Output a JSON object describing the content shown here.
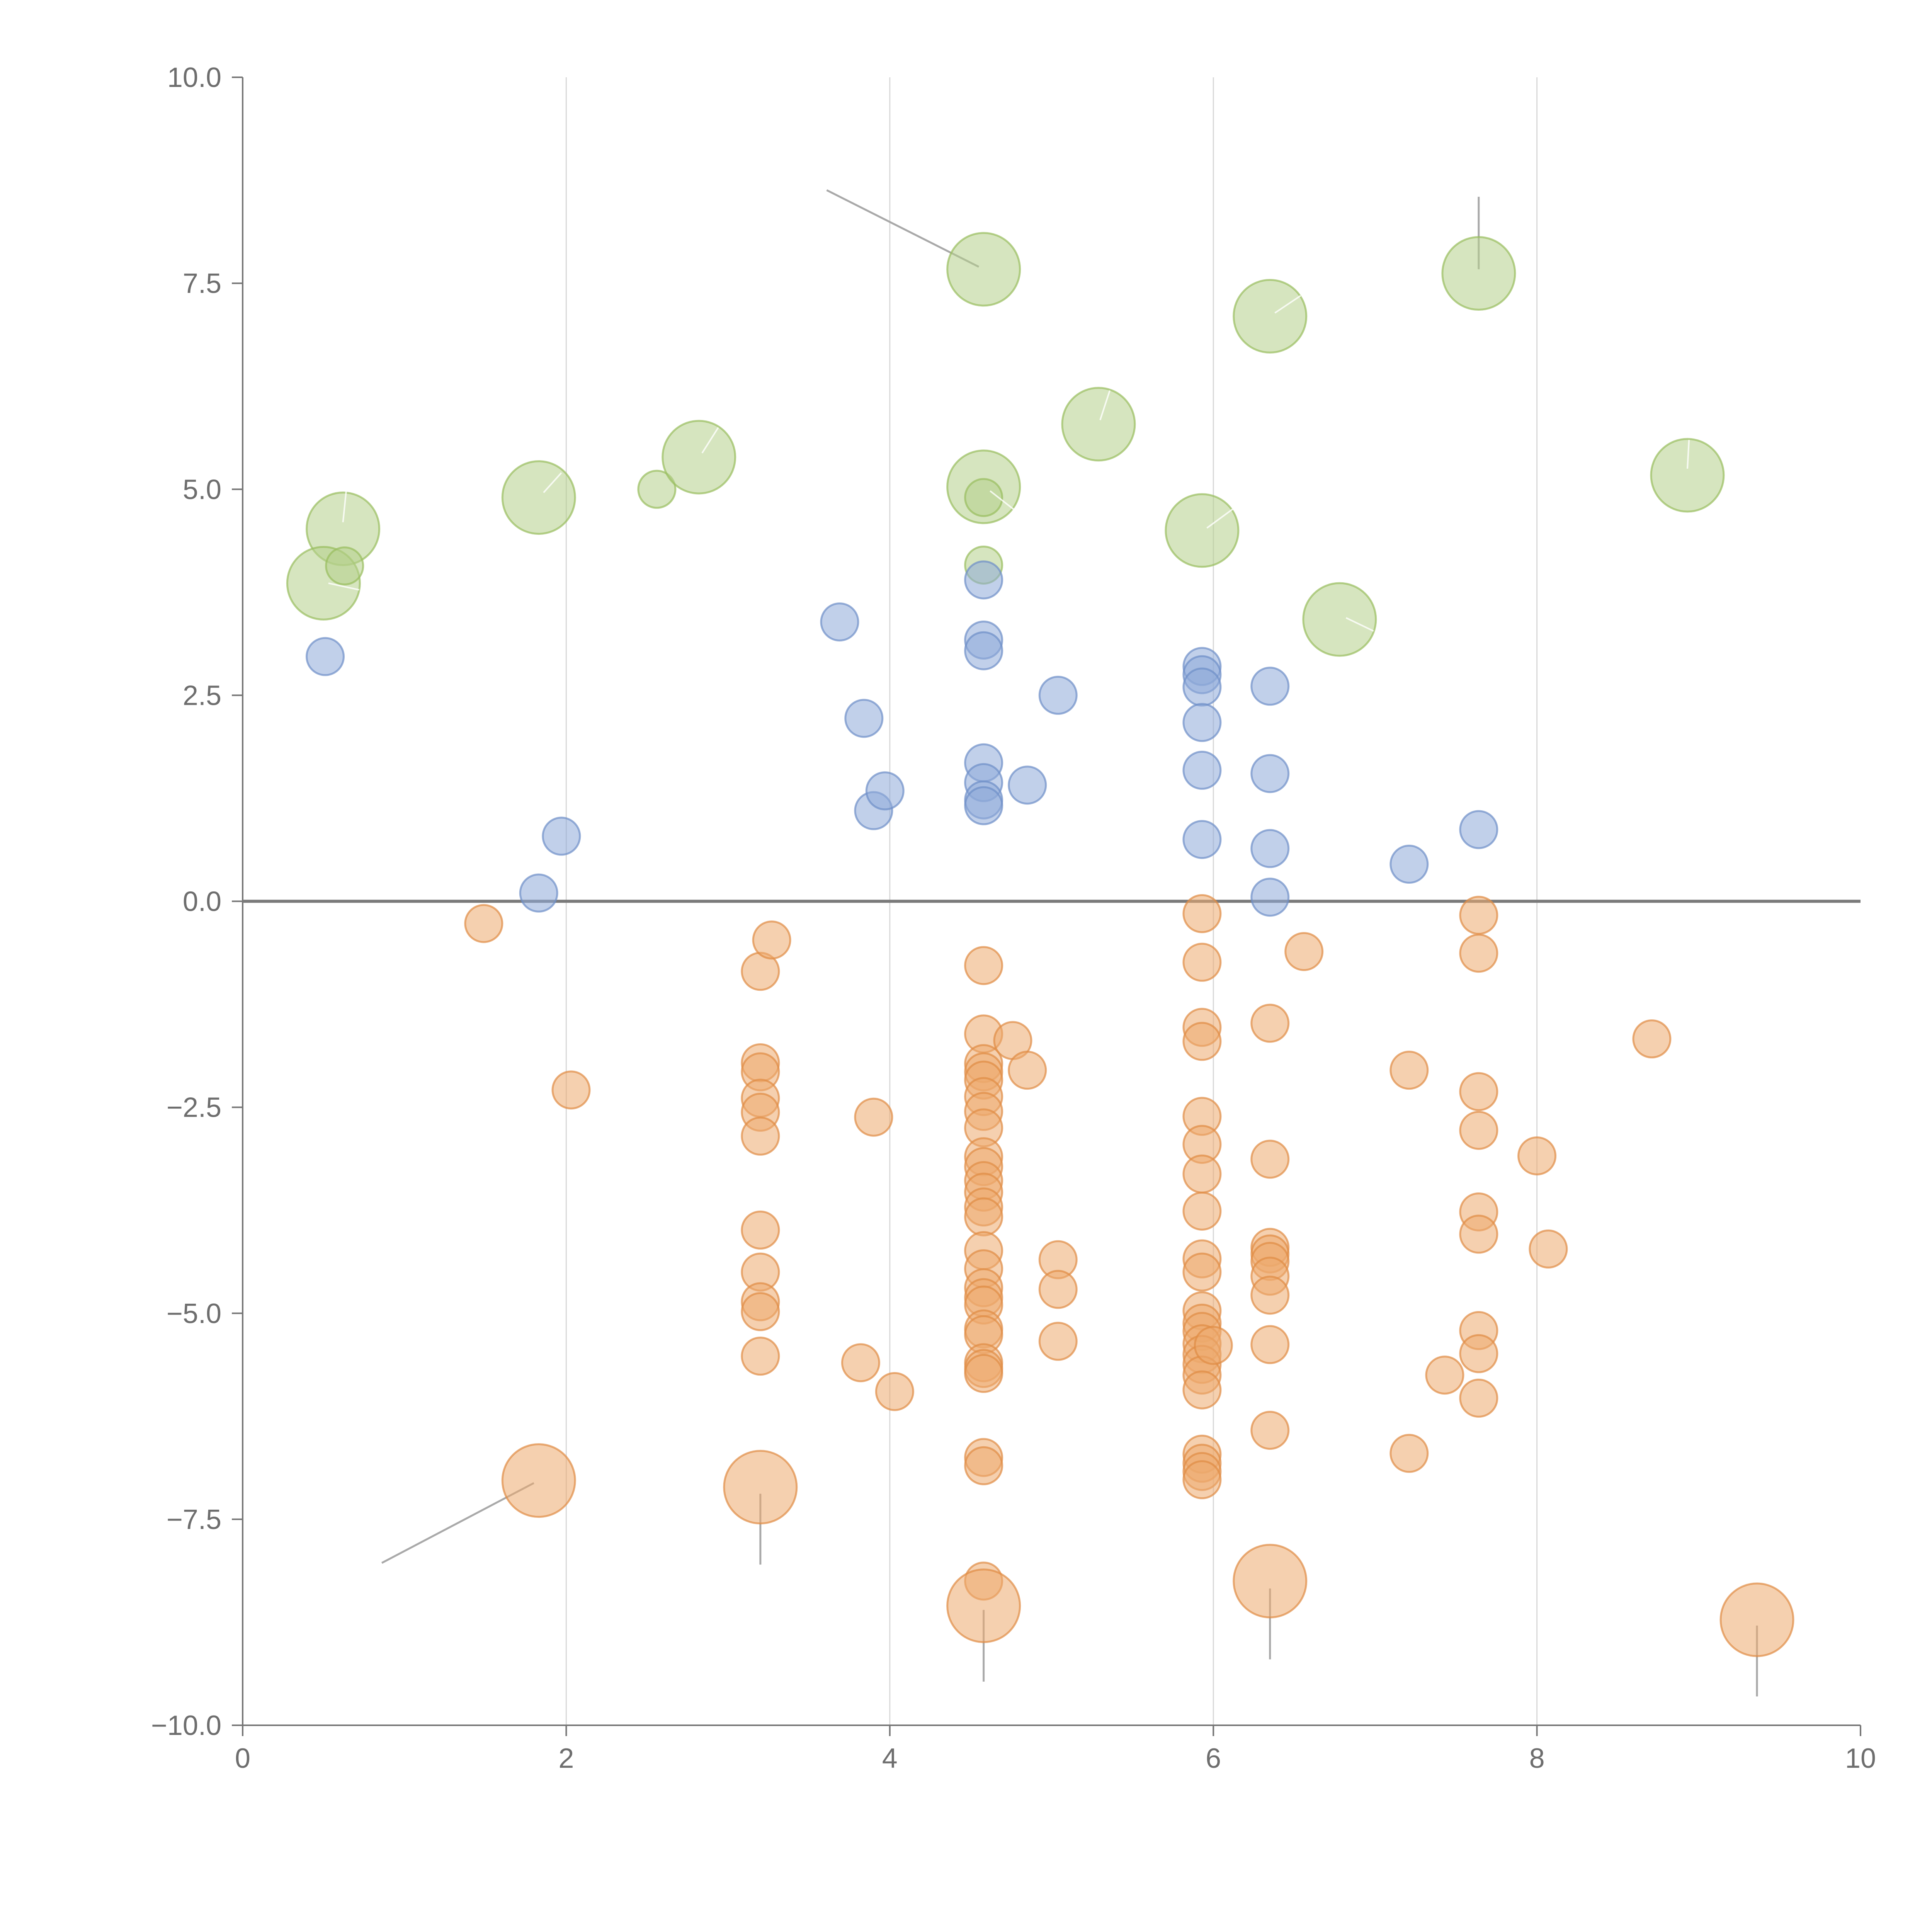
{
  "chart_data": {
    "type": "scatter",
    "title": "",
    "xlabel": "",
    "ylabel": "",
    "xlim": [
      0,
      10
    ],
    "ylim": [
      -10,
      10
    ],
    "x_ticks": [
      0,
      2,
      4,
      6,
      8,
      10
    ],
    "x_tick_labels": [
      "0",
      "2",
      "4",
      "6",
      "8",
      "10"
    ],
    "y_ticks": [
      -10,
      -7.5,
      -5,
      -2.5,
      0,
      2.5,
      5,
      7.5,
      10
    ],
    "y_tick_labels": [
      "−10.0",
      "−7.5",
      "−5.0",
      "−2.5",
      "0.0",
      "2.5",
      "5.0",
      "7.5",
      "10.0"
    ],
    "vertical_gridlines_at": [
      2,
      4,
      6,
      8
    ],
    "reference_line_y": 0,
    "colors": {
      "green_fill": "#b5d08a",
      "green_stroke": "#98bd5e",
      "blue_fill": "#8eaad8",
      "blue_stroke": "#6d8fc8",
      "orange_fill": "#eda96e",
      "orange_stroke": "#e08b45"
    },
    "size_scale": {
      "small": 1,
      "large": 2
    },
    "series": [
      {
        "name": "green",
        "points": [
          {
            "x": 0.62,
            "y": 4.52,
            "size": "large"
          },
          {
            "x": 0.5,
            "y": 3.86,
            "size": "large"
          },
          {
            "x": 0.63,
            "y": 4.07,
            "size": "small"
          },
          {
            "x": 1.83,
            "y": 4.9,
            "size": "large"
          },
          {
            "x": 2.56,
            "y": 5.0,
            "size": "small"
          },
          {
            "x": 2.82,
            "y": 5.39,
            "size": "large"
          },
          {
            "x": 4.58,
            "y": 7.67,
            "size": "large"
          },
          {
            "x": 4.58,
            "y": 5.03,
            "size": "large"
          },
          {
            "x": 4.58,
            "y": 4.9,
            "size": "small"
          },
          {
            "x": 4.58,
            "y": 4.08,
            "size": "small"
          },
          {
            "x": 5.29,
            "y": 5.79,
            "size": "large"
          },
          {
            "x": 5.93,
            "y": 4.5,
            "size": "large"
          },
          {
            "x": 6.35,
            "y": 7.1,
            "size": "large"
          },
          {
            "x": 6.78,
            "y": 3.42,
            "size": "large"
          },
          {
            "x": 7.64,
            "y": 7.62,
            "size": "large"
          },
          {
            "x": 8.93,
            "y": 5.17,
            "size": "large"
          }
        ]
      },
      {
        "name": "blue",
        "points": [
          {
            "x": 0.51,
            "y": 2.97,
            "size": "small"
          },
          {
            "x": 1.83,
            "y": 0.1,
            "size": "small"
          },
          {
            "x": 1.97,
            "y": 0.79,
            "size": "small"
          },
          {
            "x": 3.69,
            "y": 3.39,
            "size": "small"
          },
          {
            "x": 3.84,
            "y": 2.22,
            "size": "small"
          },
          {
            "x": 3.9,
            "y": 1.1,
            "size": "small"
          },
          {
            "x": 3.97,
            "y": 1.34,
            "size": "small"
          },
          {
            "x": 4.58,
            "y": 3.9,
            "size": "small"
          },
          {
            "x": 4.58,
            "y": 3.17,
            "size": "small"
          },
          {
            "x": 4.58,
            "y": 3.04,
            "size": "small"
          },
          {
            "x": 4.58,
            "y": 1.68,
            "size": "small"
          },
          {
            "x": 4.58,
            "y": 1.44,
            "size": "small"
          },
          {
            "x": 4.58,
            "y": 1.23,
            "size": "small"
          },
          {
            "x": 4.58,
            "y": 1.16,
            "size": "small"
          },
          {
            "x": 4.85,
            "y": 1.41,
            "size": "small"
          },
          {
            "x": 5.04,
            "y": 2.5,
            "size": "small"
          },
          {
            "x": 5.93,
            "y": 2.85,
            "size": "small"
          },
          {
            "x": 5.93,
            "y": 2.75,
            "size": "small"
          },
          {
            "x": 5.93,
            "y": 2.6,
            "size": "small"
          },
          {
            "x": 5.93,
            "y": 2.17,
            "size": "small"
          },
          {
            "x": 5.93,
            "y": 1.59,
            "size": "small"
          },
          {
            "x": 5.93,
            "y": 0.75,
            "size": "small"
          },
          {
            "x": 6.35,
            "y": 2.61,
            "size": "small"
          },
          {
            "x": 6.35,
            "y": 1.55,
            "size": "small"
          },
          {
            "x": 6.35,
            "y": 0.64,
            "size": "small"
          },
          {
            "x": 6.35,
            "y": 0.05,
            "size": "small"
          },
          {
            "x": 7.21,
            "y": 0.45,
            "size": "small"
          },
          {
            "x": 7.64,
            "y": 0.87,
            "size": "small"
          }
        ]
      },
      {
        "name": "orange",
        "points": [
          {
            "x": 1.49,
            "y": -0.27,
            "size": "small"
          },
          {
            "x": 2.03,
            "y": -2.29,
            "size": "small"
          },
          {
            "x": 1.83,
            "y": -7.03,
            "size": "large"
          },
          {
            "x": 3.2,
            "y": -0.85,
            "size": "small"
          },
          {
            "x": 3.27,
            "y": -0.47,
            "size": "small"
          },
          {
            "x": 3.2,
            "y": -1.96,
            "size": "small"
          },
          {
            "x": 3.2,
            "y": -2.07,
            "size": "small"
          },
          {
            "x": 3.2,
            "y": -2.39,
            "size": "small"
          },
          {
            "x": 3.2,
            "y": -2.56,
            "size": "small"
          },
          {
            "x": 3.2,
            "y": -2.85,
            "size": "small"
          },
          {
            "x": 3.2,
            "y": -3.99,
            "size": "small"
          },
          {
            "x": 3.2,
            "y": -4.5,
            "size": "small"
          },
          {
            "x": 3.2,
            "y": -4.86,
            "size": "small"
          },
          {
            "x": 3.2,
            "y": -4.98,
            "size": "small"
          },
          {
            "x": 3.2,
            "y": -5.52,
            "size": "small"
          },
          {
            "x": 3.2,
            "y": -7.11,
            "size": "large"
          },
          {
            "x": 3.82,
            "y": -5.6,
            "size": "small"
          },
          {
            "x": 3.9,
            "y": -2.62,
            "size": "small"
          },
          {
            "x": 4.03,
            "y": -5.95,
            "size": "small"
          },
          {
            "x": 4.58,
            "y": -0.78,
            "size": "small"
          },
          {
            "x": 4.58,
            "y": -1.61,
            "size": "small"
          },
          {
            "x": 4.58,
            "y": -1.97,
            "size": "small"
          },
          {
            "x": 4.58,
            "y": -2.07,
            "size": "small"
          },
          {
            "x": 4.58,
            "y": -2.17,
            "size": "small"
          },
          {
            "x": 4.58,
            "y": -2.37,
            "size": "small"
          },
          {
            "x": 4.58,
            "y": -2.55,
            "size": "small"
          },
          {
            "x": 4.58,
            "y": -2.75,
            "size": "small"
          },
          {
            "x": 4.58,
            "y": -3.1,
            "size": "small"
          },
          {
            "x": 4.58,
            "y": -3.22,
            "size": "small"
          },
          {
            "x": 4.58,
            "y": -3.39,
            "size": "small"
          },
          {
            "x": 4.58,
            "y": -3.53,
            "size": "small"
          },
          {
            "x": 4.58,
            "y": -3.71,
            "size": "small"
          },
          {
            "x": 4.58,
            "y": -3.83,
            "size": "small"
          },
          {
            "x": 4.58,
            "y": -4.24,
            "size": "small"
          },
          {
            "x": 4.58,
            "y": -4.46,
            "size": "small"
          },
          {
            "x": 4.58,
            "y": -4.69,
            "size": "small"
          },
          {
            "x": 4.58,
            "y": -4.81,
            "size": "small"
          },
          {
            "x": 4.58,
            "y": -4.9,
            "size": "small"
          },
          {
            "x": 4.58,
            "y": -5.19,
            "size": "small"
          },
          {
            "x": 4.58,
            "y": -5.26,
            "size": "small"
          },
          {
            "x": 4.58,
            "y": -5.6,
            "size": "small"
          },
          {
            "x": 4.58,
            "y": -5.67,
            "size": "small"
          },
          {
            "x": 4.58,
            "y": -5.73,
            "size": "small"
          },
          {
            "x": 4.58,
            "y": -6.75,
            "size": "small"
          },
          {
            "x": 4.58,
            "y": -6.85,
            "size": "small"
          },
          {
            "x": 4.58,
            "y": -8.25,
            "size": "small"
          },
          {
            "x": 4.58,
            "y": -8.55,
            "size": "large"
          },
          {
            "x": 4.76,
            "y": -1.69,
            "size": "small"
          },
          {
            "x": 4.85,
            "y": -2.05,
            "size": "small"
          },
          {
            "x": 5.04,
            "y": -4.35,
            "size": "small"
          },
          {
            "x": 5.04,
            "y": -4.71,
            "size": "small"
          },
          {
            "x": 5.04,
            "y": -5.34,
            "size": "small"
          },
          {
            "x": 5.93,
            "y": -0.15,
            "size": "small"
          },
          {
            "x": 5.93,
            "y": -0.74,
            "size": "small"
          },
          {
            "x": 5.93,
            "y": -1.53,
            "size": "small"
          },
          {
            "x": 5.93,
            "y": -1.7,
            "size": "small"
          },
          {
            "x": 5.93,
            "y": -2.61,
            "size": "small"
          },
          {
            "x": 5.93,
            "y": -2.95,
            "size": "small"
          },
          {
            "x": 5.93,
            "y": -3.31,
            "size": "small"
          },
          {
            "x": 5.93,
            "y": -3.76,
            "size": "small"
          },
          {
            "x": 5.93,
            "y": -4.34,
            "size": "small"
          },
          {
            "x": 5.93,
            "y": -4.5,
            "size": "small"
          },
          {
            "x": 5.93,
            "y": -4.97,
            "size": "small"
          },
          {
            "x": 5.93,
            "y": -5.12,
            "size": "small"
          },
          {
            "x": 5.93,
            "y": -5.22,
            "size": "small"
          },
          {
            "x": 5.93,
            "y": -5.37,
            "size": "small"
          },
          {
            "x": 5.93,
            "y": -5.5,
            "size": "small"
          },
          {
            "x": 5.93,
            "y": -5.62,
            "size": "small"
          },
          {
            "x": 5.93,
            "y": -5.75,
            "size": "small"
          },
          {
            "x": 5.93,
            "y": -5.93,
            "size": "small"
          },
          {
            "x": 5.93,
            "y": -6.71,
            "size": "small"
          },
          {
            "x": 5.93,
            "y": -6.82,
            "size": "small"
          },
          {
            "x": 5.93,
            "y": -6.92,
            "size": "small"
          },
          {
            "x": 5.93,
            "y": -7.02,
            "size": "small"
          },
          {
            "x": 6.0,
            "y": -5.39,
            "size": "small"
          },
          {
            "x": 6.35,
            "y": -1.48,
            "size": "small"
          },
          {
            "x": 6.35,
            "y": -3.13,
            "size": "small"
          },
          {
            "x": 6.35,
            "y": -4.2,
            "size": "small"
          },
          {
            "x": 6.35,
            "y": -4.28,
            "size": "small"
          },
          {
            "x": 6.35,
            "y": -4.37,
            "size": "small"
          },
          {
            "x": 6.35,
            "y": -4.55,
            "size": "small"
          },
          {
            "x": 6.35,
            "y": -4.78,
            "size": "small"
          },
          {
            "x": 6.35,
            "y": -5.38,
            "size": "small"
          },
          {
            "x": 6.35,
            "y": -6.42,
            "size": "small"
          },
          {
            "x": 6.35,
            "y": -8.25,
            "size": "large"
          },
          {
            "x": 6.56,
            "y": -0.61,
            "size": "small"
          },
          {
            "x": 7.21,
            "y": -2.05,
            "size": "small"
          },
          {
            "x": 7.21,
            "y": -6.7,
            "size": "small"
          },
          {
            "x": 7.43,
            "y": -5.75,
            "size": "small"
          },
          {
            "x": 7.64,
            "y": -0.17,
            "size": "small"
          },
          {
            "x": 7.64,
            "y": -0.63,
            "size": "small"
          },
          {
            "x": 7.64,
            "y": -2.31,
            "size": "small"
          },
          {
            "x": 7.64,
            "y": -2.78,
            "size": "small"
          },
          {
            "x": 7.64,
            "y": -3.77,
            "size": "small"
          },
          {
            "x": 7.64,
            "y": -4.04,
            "size": "small"
          },
          {
            "x": 7.64,
            "y": -5.21,
            "size": "small"
          },
          {
            "x": 7.64,
            "y": -5.49,
            "size": "small"
          },
          {
            "x": 7.64,
            "y": -6.03,
            "size": "small"
          },
          {
            "x": 8.0,
            "y": -3.09,
            "size": "small"
          },
          {
            "x": 8.07,
            "y": -4.22,
            "size": "small"
          },
          {
            "x": 8.71,
            "y": -1.67,
            "size": "small"
          },
          {
            "x": 9.36,
            "y": -8.72,
            "size": "large"
          }
        ]
      }
    ],
    "leader_lines": [
      {
        "style": "dark",
        "x1": 3.61,
        "y1": 8.63,
        "x2": 4.55,
        "y2": 7.7
      },
      {
        "style": "dark",
        "x1": 7.64,
        "y1": 8.55,
        "x2": 7.64,
        "y2": 7.67
      },
      {
        "style": "dark",
        "x1": 1.8,
        "y1": -7.06,
        "x2": 0.86,
        "y2": -8.03
      },
      {
        "style": "dark",
        "x1": 3.2,
        "y1": -7.19,
        "x2": 3.2,
        "y2": -8.05
      },
      {
        "style": "dark",
        "x1": 4.58,
        "y1": -8.6,
        "x2": 4.58,
        "y2": -9.47
      },
      {
        "style": "dark",
        "x1": 6.35,
        "y1": -8.34,
        "x2": 6.35,
        "y2": -9.2
      },
      {
        "style": "dark",
        "x1": 9.36,
        "y1": -8.79,
        "x2": 9.36,
        "y2": -9.65
      },
      {
        "style": "light",
        "x1": 0.62,
        "y1": 4.6,
        "x2": 0.64,
        "y2": 4.98
      },
      {
        "style": "light",
        "x1": 0.53,
        "y1": 3.86,
        "x2": 0.72,
        "y2": 3.78
      },
      {
        "style": "light",
        "x1": 1.86,
        "y1": 4.96,
        "x2": 1.97,
        "y2": 5.2
      },
      {
        "style": "light",
        "x1": 2.84,
        "y1": 5.44,
        "x2": 2.94,
        "y2": 5.75
      },
      {
        "style": "light",
        "x1": 4.62,
        "y1": 4.98,
        "x2": 4.77,
        "y2": 4.75
      },
      {
        "style": "light",
        "x1": 5.3,
        "y1": 5.84,
        "x2": 5.36,
        "y2": 6.2
      },
      {
        "style": "light",
        "x1": 5.96,
        "y1": 4.53,
        "x2": 6.12,
        "y2": 4.76
      },
      {
        "style": "light",
        "x1": 6.38,
        "y1": 7.14,
        "x2": 6.54,
        "y2": 7.35
      },
      {
        "style": "light",
        "x1": 6.82,
        "y1": 3.44,
        "x2": 6.99,
        "y2": 3.28
      },
      {
        "style": "light",
        "x1": 8.93,
        "y1": 5.25,
        "x2": 8.94,
        "y2": 5.6
      }
    ]
  }
}
